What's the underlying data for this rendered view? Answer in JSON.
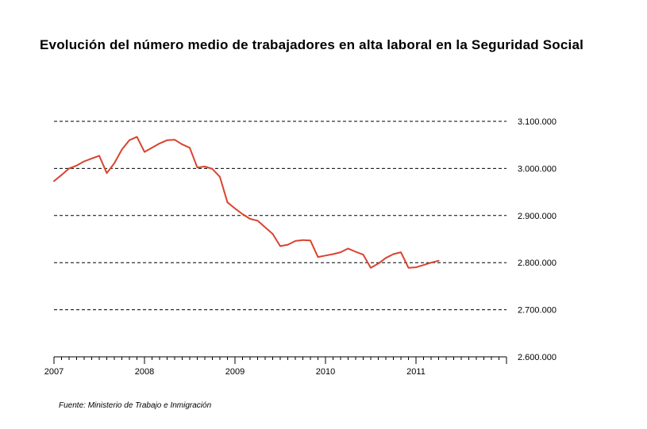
{
  "chart_data": {
    "type": "line",
    "title": "Evolución del número medio de trabajadores en alta laboral en la Seguridad Social",
    "source": "Fuente: Ministerio de Trabajo e Inmigración",
    "xlabel": "",
    "ylabel": "",
    "x_ticks": [
      "2007",
      "2008",
      "2009",
      "2010",
      "2011"
    ],
    "y_ticks": [
      {
        "value": 2600000,
        "label": "2.600.000"
      },
      {
        "value": 2700000,
        "label": "2.700.000"
      },
      {
        "value": 2800000,
        "label": "2.800.000"
      },
      {
        "value": 2900000,
        "label": "2.900.000"
      },
      {
        "value": 3000000,
        "label": "3.000.000"
      },
      {
        "value": 3100000,
        "label": "3.100.000"
      }
    ],
    "ylim": [
      2600000,
      3100000
    ],
    "xlim": [
      "2007-01",
      "2011-12"
    ],
    "grid": "horizontal dashed",
    "y_axis_position": "right",
    "line_color": "#d9432f",
    "series": [
      {
        "points": [
          [
            "2007-01",
            2973000
          ],
          [
            "2007-02",
            2986000
          ],
          [
            "2007-03",
            3000000
          ],
          [
            "2007-04",
            3006000
          ],
          [
            "2007-05",
            3015000
          ],
          [
            "2007-06",
            3021000
          ],
          [
            "2007-07",
            3027000
          ],
          [
            "2007-08",
            2990000
          ],
          [
            "2007-09",
            3011000
          ],
          [
            "2007-10",
            3040000
          ],
          [
            "2007-11",
            3060000
          ],
          [
            "2007-12",
            3067000
          ],
          [
            "2008-01",
            3035000
          ],
          [
            "2008-02",
            3044000
          ],
          [
            "2008-03",
            3053000
          ],
          [
            "2008-04",
            3060000
          ],
          [
            "2008-05",
            3061000
          ],
          [
            "2008-06",
            3051000
          ],
          [
            "2008-07",
            3044000
          ],
          [
            "2008-08",
            3002000
          ],
          [
            "2008-09",
            3004000
          ],
          [
            "2008-10",
            2999000
          ],
          [
            "2008-11",
            2982000
          ],
          [
            "2008-12",
            2928000
          ],
          [
            "2009-01",
            2915000
          ],
          [
            "2009-02",
            2903000
          ],
          [
            "2009-03",
            2893000
          ],
          [
            "2009-04",
            2889000
          ],
          [
            "2009-05",
            2875000
          ],
          [
            "2009-06",
            2861000
          ],
          [
            "2009-07",
            2835000
          ],
          [
            "2009-08",
            2838000
          ],
          [
            "2009-09",
            2846000
          ],
          [
            "2009-10",
            2848000
          ],
          [
            "2009-11",
            2847000
          ],
          [
            "2009-12",
            2812000
          ],
          [
            "2010-01",
            2815000
          ],
          [
            "2010-02",
            2818000
          ],
          [
            "2010-03",
            2822000
          ],
          [
            "2010-04",
            2830000
          ],
          [
            "2010-05",
            2823000
          ],
          [
            "2010-06",
            2817000
          ],
          [
            "2010-07",
            2789000
          ],
          [
            "2010-08",
            2798000
          ],
          [
            "2010-09",
            2810000
          ],
          [
            "2010-10",
            2818000
          ],
          [
            "2010-11",
            2822000
          ],
          [
            "2010-12",
            2789000
          ],
          [
            "2011-01",
            2790000
          ],
          [
            "2011-02",
            2795000
          ],
          [
            "2011-03",
            2800000
          ],
          [
            "2011-04",
            2804000
          ]
        ]
      }
    ]
  }
}
